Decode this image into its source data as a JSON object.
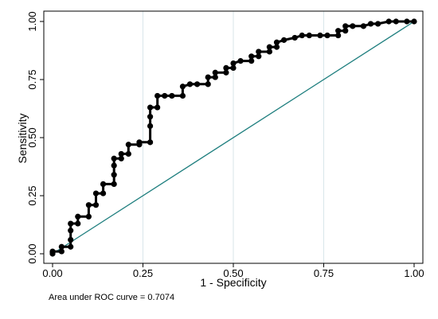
{
  "chart_data": {
    "type": "line",
    "title": "",
    "xlabel": "1 - Specificity",
    "ylabel": "Sensitivity",
    "xlim": [
      0,
      1
    ],
    "ylim": [
      0,
      1
    ],
    "x_ticks": [
      0,
      0.25,
      0.5,
      0.75,
      1
    ],
    "x_tick_labels": [
      "0.00",
      "0.25",
      "0.50",
      "0.75",
      "1.00"
    ],
    "y_ticks": [
      0,
      0.25,
      0.5,
      0.75,
      1
    ],
    "y_tick_labels": [
      "0.00",
      "0.25",
      "0.50",
      "0.75",
      "1.00"
    ],
    "grid": "vertical",
    "legend": "none",
    "annotation": "Area under ROC curve = 0.7074",
    "colors": {
      "roc": "#000000",
      "reference": "#1f7f7f",
      "grid": "#d9e6ea"
    },
    "series": [
      {
        "kind": "roc",
        "x": [
          0.0,
          0.0,
          0.0,
          0.025,
          0.025,
          0.05,
          0.05,
          0.05,
          0.05,
          0.07,
          0.07,
          0.1,
          0.1,
          0.12,
          0.12,
          0.14,
          0.14,
          0.17,
          0.17,
          0.17,
          0.17,
          0.19,
          0.19,
          0.21,
          0.21,
          0.24,
          0.24,
          0.27,
          0.27,
          0.27,
          0.27,
          0.29,
          0.29,
          0.31,
          0.33,
          0.36,
          0.36,
          0.38,
          0.4,
          0.43,
          0.43,
          0.45,
          0.45,
          0.48,
          0.48,
          0.5,
          0.5,
          0.52,
          0.55,
          0.55,
          0.57,
          0.57,
          0.6,
          0.6,
          0.62,
          0.62,
          0.64,
          0.67,
          0.69,
          0.71,
          0.74,
          0.76,
          0.79,
          0.79,
          0.81,
          0.81,
          0.83,
          0.86,
          0.88,
          0.9,
          0.93,
          0.95,
          0.98,
          1.0
        ],
        "y": [
          0.0,
          0.005,
          0.01,
          0.01,
          0.03,
          0.03,
          0.06,
          0.1,
          0.13,
          0.13,
          0.16,
          0.16,
          0.21,
          0.21,
          0.26,
          0.26,
          0.3,
          0.3,
          0.34,
          0.38,
          0.41,
          0.41,
          0.43,
          0.43,
          0.47,
          0.47,
          0.48,
          0.48,
          0.55,
          0.59,
          0.63,
          0.63,
          0.68,
          0.68,
          0.68,
          0.68,
          0.72,
          0.73,
          0.73,
          0.73,
          0.76,
          0.76,
          0.78,
          0.78,
          0.8,
          0.8,
          0.82,
          0.83,
          0.83,
          0.85,
          0.85,
          0.87,
          0.87,
          0.89,
          0.89,
          0.91,
          0.92,
          0.93,
          0.94,
          0.94,
          0.94,
          0.94,
          0.94,
          0.96,
          0.96,
          0.98,
          0.98,
          0.98,
          0.99,
          0.99,
          1.0,
          1.0,
          1.0,
          1.0
        ]
      },
      {
        "kind": "reference",
        "x": [
          0,
          1
        ],
        "y": [
          0,
          1
        ]
      }
    ]
  }
}
